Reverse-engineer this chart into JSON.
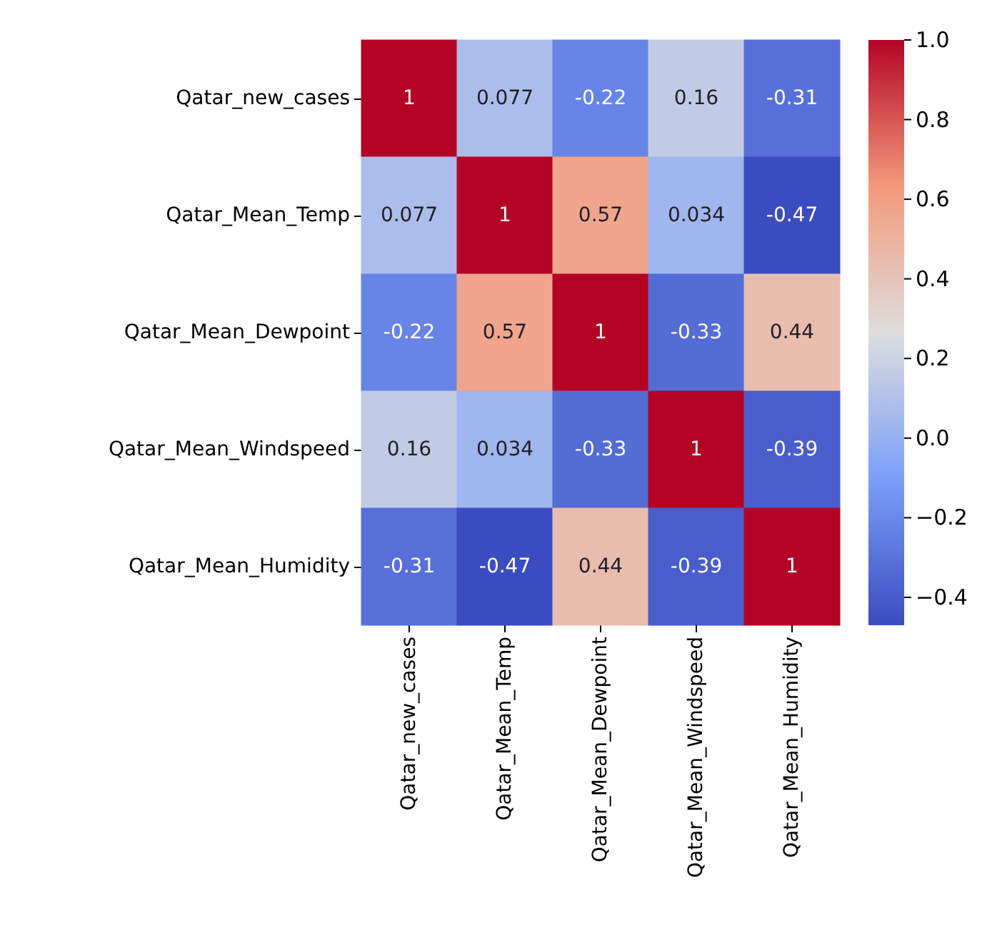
{
  "chart_data": {
    "type": "heatmap",
    "categories": [
      "Qatar_new_cases",
      "Qatar_Mean_Temp",
      "Qatar_Mean_Dewpoint",
      "Qatar_Mean_Windspeed",
      "Qatar_Mean_Humidity"
    ],
    "y_categories": [
      "Qatar_new_cases",
      "Qatar_Mean_Temp",
      "Qatar_Mean_Dewpoint",
      "Qatar_Mean_Windspeed",
      "Qatar_Mean_Humidity"
    ],
    "cells": [
      [
        1,
        0.077,
        -0.22,
        0.16,
        -0.31
      ],
      [
        0.077,
        1,
        0.57,
        0.034,
        -0.47
      ],
      [
        -0.22,
        0.57,
        1,
        -0.33,
        0.44
      ],
      [
        0.16,
        0.034,
        -0.33,
        1,
        -0.39
      ],
      [
        -0.31,
        -0.47,
        0.44,
        -0.39,
        1
      ]
    ],
    "data_labels": true,
    "clim": [
      -0.47,
      1.0
    ],
    "cticks": [
      {
        "value": -0.4,
        "label": "−0.4"
      },
      {
        "value": -0.2,
        "label": "−0.2"
      },
      {
        "value": 0.0,
        "label": "0.0"
      },
      {
        "value": 0.2,
        "label": "0.2"
      },
      {
        "value": 0.4,
        "label": "0.4"
      },
      {
        "value": 0.6,
        "label": "0.6"
      },
      {
        "value": 0.8,
        "label": "0.8"
      },
      {
        "value": 1.0,
        "label": "1.0"
      }
    ]
  }
}
